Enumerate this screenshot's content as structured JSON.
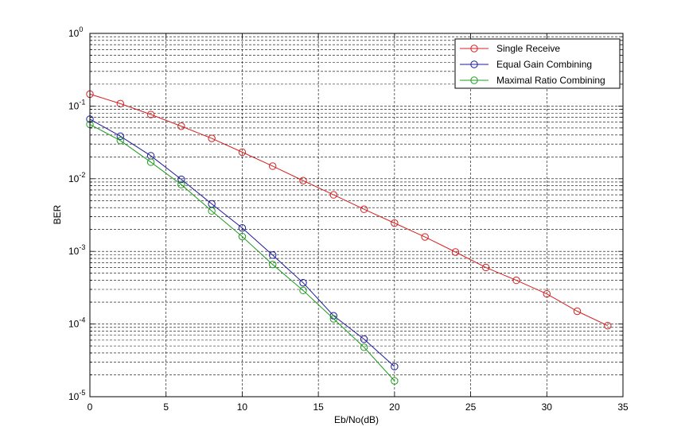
{
  "chart_data": {
    "type": "line",
    "title": "",
    "xlabel": "Eb/No(dB)",
    "ylabel": "BER",
    "xlim": [
      0,
      35
    ],
    "ylim": [
      1e-05,
      1
    ],
    "yscale": "log",
    "grid": true,
    "legend_position": "top-right",
    "x_ticks": [
      {
        "value": 0,
        "label": "0"
      },
      {
        "value": 5,
        "label": "5"
      },
      {
        "value": 10,
        "label": "10"
      },
      {
        "value": 15,
        "label": "15"
      },
      {
        "value": 20,
        "label": "20"
      },
      {
        "value": 25,
        "label": "25"
      },
      {
        "value": 30,
        "label": "30"
      },
      {
        "value": 35,
        "label": "35"
      }
    ],
    "y_ticks": [
      {
        "exp": 0,
        "base": "10",
        "sup": "0"
      },
      {
        "exp": -1,
        "base": "10",
        "sup": "-1"
      },
      {
        "exp": -2,
        "base": "10",
        "sup": "-2"
      },
      {
        "exp": -3,
        "base": "10",
        "sup": "-3"
      },
      {
        "exp": -4,
        "base": "10",
        "sup": "-4"
      },
      {
        "exp": -5,
        "base": "10",
        "sup": "-5"
      }
    ],
    "series": [
      {
        "name": "Single Receive",
        "color": "#d62020",
        "x": [
          0,
          2,
          4,
          6,
          8,
          10,
          12,
          14,
          16,
          18,
          20,
          22,
          24,
          26,
          28,
          30,
          32,
          34
        ],
        "y": [
          0.146,
          0.108,
          0.0765,
          0.0528,
          0.0359,
          0.0232,
          0.0149,
          0.0094,
          0.006,
          0.0038,
          0.00245,
          0.00158,
          0.00098,
          0.0006,
          0.0004,
          0.00026,
          0.00015,
          9.5e-05
        ]
      },
      {
        "name": "Equal Gain Combining",
        "color": "#1a1a9e",
        "x": [
          0,
          2,
          4,
          6,
          8,
          10,
          12,
          14,
          16,
          18,
          20
        ],
        "y": [
          0.066,
          0.0385,
          0.0207,
          0.0098,
          0.0045,
          0.0021,
          0.00089,
          0.00037,
          0.00013,
          6.2e-05,
          2.6e-05
        ]
      },
      {
        "name": "Maximal Ratio Combining",
        "color": "#1f9c1f",
        "x": [
          0,
          2,
          4,
          6,
          8,
          10,
          12,
          14,
          16,
          18,
          20
        ],
        "y": [
          0.056,
          0.0335,
          0.0169,
          0.0083,
          0.0036,
          0.0016,
          0.00066,
          0.00029,
          0.000118,
          4.8e-05,
          1.65e-05
        ]
      }
    ]
  }
}
